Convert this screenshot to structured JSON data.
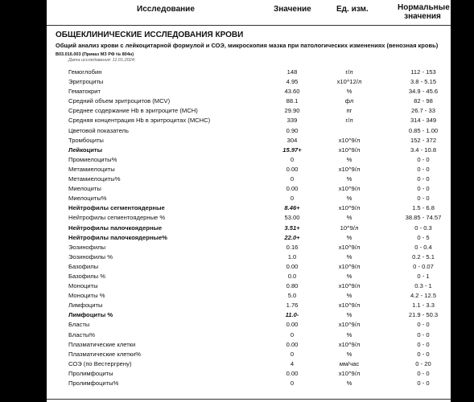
{
  "header": {
    "col_test": "Исследование",
    "col_value": "Значение",
    "col_unit": "Ед. изм.",
    "col_range": "Нормальные значения"
  },
  "section_title": "ОБЩЕКЛИНИЧЕСКИЕ ИССЛЕДОВАНИЯ КРОВИ",
  "analysis": {
    "title": "Общий анализ крови с лейкоцитарной формулой и СОЭ, микроскопия мазка при патологических изменениях (венозная кровь)",
    "code": "B03.016.003 (Приказ МЗ РФ № 804н)",
    "date": "Дата исследования: 11.01.2024;"
  },
  "rows": [
    {
      "name": "Гемоглобин",
      "value": "148",
      "unit": "г/л",
      "range": "112 - 153",
      "abnormal": false
    },
    {
      "name": "Эритроциты",
      "value": "4.95",
      "unit": "x10^12/л",
      "range": "3.8 - 5.15",
      "abnormal": false
    },
    {
      "name": "Гематокрит",
      "value": "43.60",
      "unit": "%",
      "range": "34.9 - 45.6",
      "abnormal": false
    },
    {
      "name": "Средний объем эритроцитов (MCV)",
      "value": "88.1",
      "unit": "фл",
      "range": "82 - 98",
      "abnormal": false
    },
    {
      "name": "Среднее содержание Hb в эритроците (MCH)",
      "value": "29.90",
      "unit": "пг",
      "range": "26.7 - 33",
      "abnormal": false
    },
    {
      "name": "Средняя концентрация Hb в эритроцитах (MCHC)",
      "value": "339",
      "unit": "г/л",
      "range": "314 - 349",
      "abnormal": false
    },
    {
      "name": "Цветовой показатель",
      "value": "0.90",
      "unit": "",
      "range": "0.85 - 1.00",
      "abnormal": false
    },
    {
      "name": "Тромбоциты",
      "value": "304",
      "unit": "x10^9/л",
      "range": "152 - 372",
      "abnormal": false
    },
    {
      "name": "Лейкоциты",
      "value": "15.97+",
      "unit": "x10^9/л",
      "range": "3.4 - 10.8",
      "abnormal": true
    },
    {
      "name": "Промиелоциты%",
      "value": "0",
      "unit": "%",
      "range": "0 - 0",
      "abnormal": false
    },
    {
      "name": "Метамиелоциты",
      "value": "0.00",
      "unit": "x10^9/л",
      "range": "0 - 0",
      "abnormal": false
    },
    {
      "name": "Метамиелоциты%",
      "value": "0",
      "unit": "%",
      "range": "0 - 0",
      "abnormal": false
    },
    {
      "name": "Миелоциты",
      "value": "0.00",
      "unit": "x10^9/л",
      "range": "0 - 0",
      "abnormal": false
    },
    {
      "name": "Миелоциты%",
      "value": "0",
      "unit": "%",
      "range": "0 - 0",
      "abnormal": false
    },
    {
      "name": "Нейтрофилы сегментоядерные",
      "value": "8.46+",
      "unit": "x10^9/л",
      "range": "1.5 - 6.8",
      "abnormal": true
    },
    {
      "name": "Нейтрофилы сегментоядерные %",
      "value": "53.00",
      "unit": "%",
      "range": "38.85 - 74.57",
      "abnormal": false
    },
    {
      "name": "Нейтрофилы палочкоядерные",
      "value": "3.51+",
      "unit": "10^9/л",
      "range": "0 - 0.3",
      "abnormal": true
    },
    {
      "name": "Нейтрофилы палочкоядерные%",
      "value": "22.0+",
      "unit": "%",
      "range": "0 - 5",
      "abnormal": true
    },
    {
      "name": "Эозинофилы",
      "value": "0.16",
      "unit": "x10^9/л",
      "range": "0 - 0.4",
      "abnormal": false
    },
    {
      "name": "Эозинофилы %",
      "value": "1.0",
      "unit": "%",
      "range": "0.2 - 5.1",
      "abnormal": false
    },
    {
      "name": "Базофилы",
      "value": "0.00",
      "unit": "x10^9/л",
      "range": "0 - 0.07",
      "abnormal": false
    },
    {
      "name": "Базофилы %",
      "value": "0.0",
      "unit": "%",
      "range": "0 - 1",
      "abnormal": false
    },
    {
      "name": "Моноциты",
      "value": "0.80",
      "unit": "x10^9/л",
      "range": "0.3 - 1",
      "abnormal": false
    },
    {
      "name": "Моноциты %",
      "value": "5.0",
      "unit": "%",
      "range": "4.2 - 12.5",
      "abnormal": false
    },
    {
      "name": "Лимфоциты",
      "value": "1.76",
      "unit": "x10^9/л",
      "range": "1.1 - 3.3",
      "abnormal": false
    },
    {
      "name": "Лимфоциты %",
      "value": "11.0-",
      "unit": "%",
      "range": "21.9 - 50.3",
      "abnormal": true
    },
    {
      "name": "Бласты",
      "value": "0.00",
      "unit": "x10^9/л",
      "range": "0 - 0",
      "abnormal": false
    },
    {
      "name": "Бласты%",
      "value": "0",
      "unit": "%",
      "range": "0 - 0",
      "abnormal": false
    },
    {
      "name": "Плазматические клетки",
      "value": "0.00",
      "unit": "x10^9/л",
      "range": "0 - 0",
      "abnormal": false
    },
    {
      "name": "Плазматические клетки%",
      "value": "0",
      "unit": "%",
      "range": "0 - 0",
      "abnormal": false
    },
    {
      "name": "СОЭ (по Вестергрену)",
      "value": "4",
      "unit": "мм/час",
      "range": "0 - 20",
      "abnormal": false
    },
    {
      "name": "Пролимфоциты",
      "value": "0.00",
      "unit": "x10^9/л",
      "range": "0 - 0",
      "abnormal": false
    },
    {
      "name": "Пролимфоциты%",
      "value": "0",
      "unit": "%",
      "range": "0 - 0",
      "abnormal": false
    }
  ]
}
